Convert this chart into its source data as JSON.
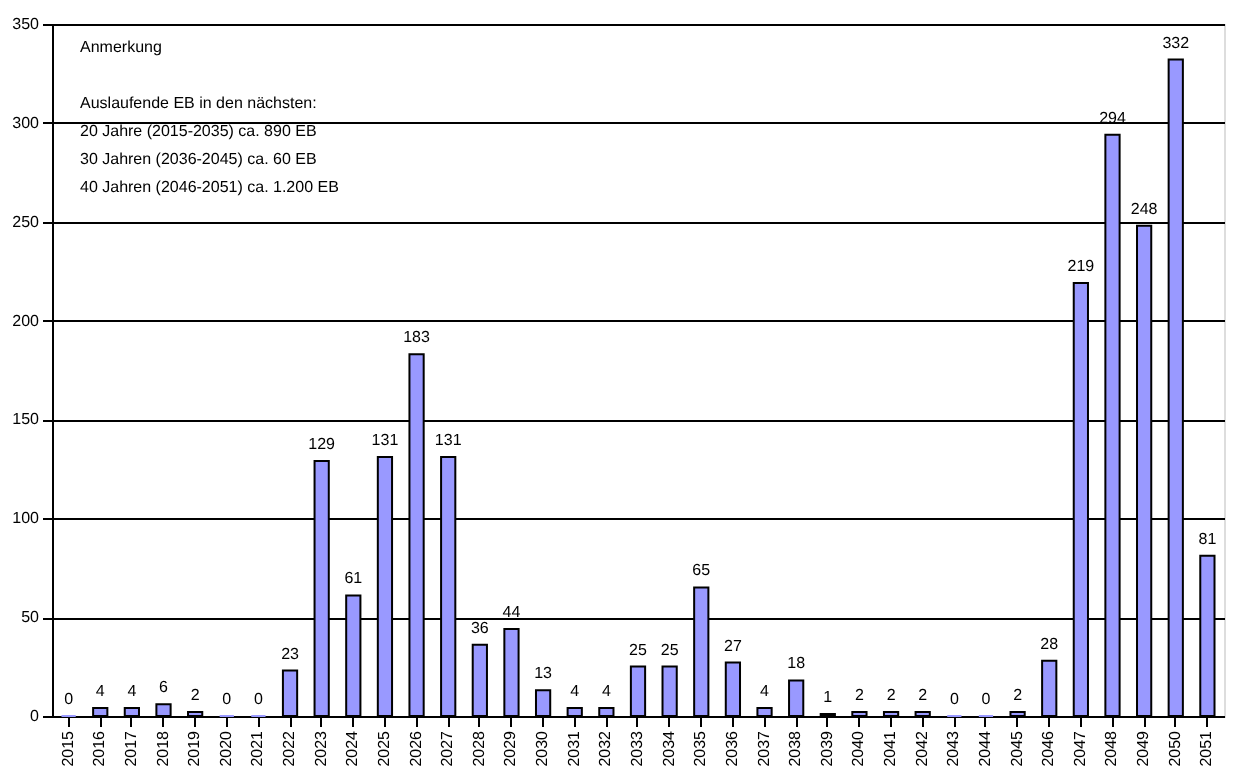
{
  "chart_data": {
    "type": "bar",
    "categories": [
      "2015",
      "2016",
      "2017",
      "2018",
      "2019",
      "2020",
      "2021",
      "2022",
      "2023",
      "2024",
      "2025",
      "2026",
      "2027",
      "2028",
      "2029",
      "2030",
      "2031",
      "2032",
      "2033",
      "2034",
      "2035",
      "2036",
      "2037",
      "2038",
      "2039",
      "2040",
      "2041",
      "2042",
      "2043",
      "2044",
      "2045",
      "2046",
      "2047",
      "2048",
      "2049",
      "2050",
      "2051"
    ],
    "values": [
      0,
      4,
      4,
      6,
      2,
      0,
      0,
      23,
      129,
      61,
      131,
      183,
      131,
      36,
      44,
      13,
      4,
      4,
      25,
      25,
      65,
      27,
      4,
      18,
      1,
      2,
      2,
      2,
      0,
      0,
      2,
      28,
      219,
      294,
      248,
      332,
      81
    ],
    "color": "#9999ff",
    "ylim": [
      0,
      350
    ],
    "yticks": [
      0,
      50,
      100,
      150,
      200,
      250,
      300,
      350
    ],
    "grid": "y",
    "data_labels": true,
    "annotations": [
      "Anmerkung",
      "Auslaufende EB in den nächsten:",
      "20 Jahre (2015-2035) ca. 890 EB",
      "30 Jahren (2036-2045) ca. 60 EB",
      "40 Jahren (2046-2051) ca. 1.200 EB"
    ]
  }
}
